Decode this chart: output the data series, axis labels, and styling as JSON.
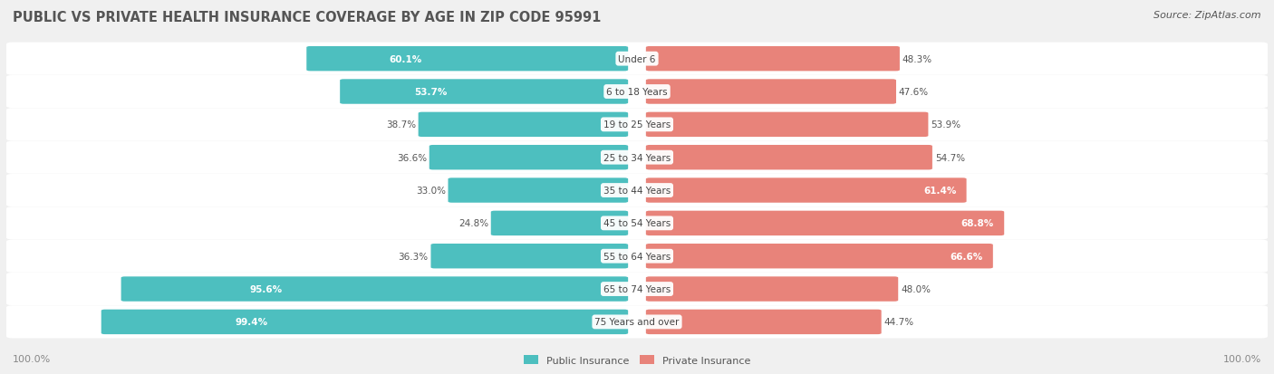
{
  "title": "PUBLIC VS PRIVATE HEALTH INSURANCE COVERAGE BY AGE IN ZIP CODE 95991",
  "source": "Source: ZipAtlas.com",
  "categories": [
    "Under 6",
    "6 to 18 Years",
    "19 to 25 Years",
    "25 to 34 Years",
    "35 to 44 Years",
    "45 to 54 Years",
    "55 to 64 Years",
    "65 to 74 Years",
    "75 Years and over"
  ],
  "public_values": [
    60.1,
    53.7,
    38.7,
    36.6,
    33.0,
    24.8,
    36.3,
    95.6,
    99.4
  ],
  "private_values": [
    48.3,
    47.6,
    53.9,
    54.7,
    61.4,
    68.8,
    66.6,
    48.0,
    44.7
  ],
  "public_color": "#4dbfbf",
  "private_color": "#e8837a",
  "bg_color": "#f0f0f0",
  "bar_row_color": "#ffffff",
  "title_color": "#555555",
  "label_color": "#555555",
  "axis_label_color": "#888888",
  "legend_public": "Public Insurance",
  "legend_private": "Private Insurance"
}
